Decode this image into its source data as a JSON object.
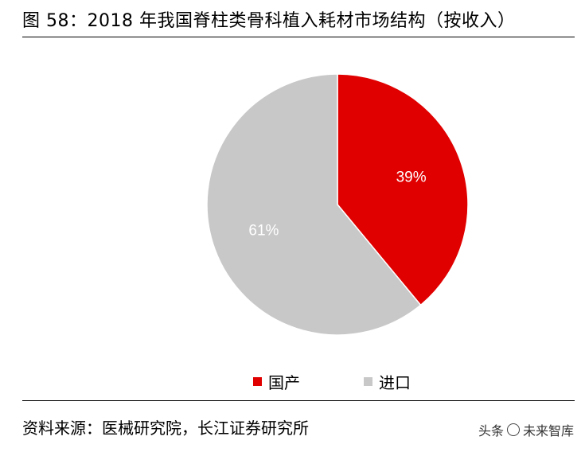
{
  "title": "图 58：2018 年我国脊柱类骨科植入耗材市场结构（按收入）",
  "source": "资料来源：医械研究院，长江证券研究所",
  "watermark": {
    "prefix": "头条",
    "name": "未来智库"
  },
  "chart_data": {
    "type": "pie",
    "title": "",
    "slices": [
      {
        "label": "国产",
        "value": 39,
        "display": "39%",
        "color": "#e00000",
        "text_color": "#ffffff"
      },
      {
        "label": "进口",
        "value": 61,
        "display": "61%",
        "color": "#c8c8c8",
        "text_color": "#ffffff"
      }
    ],
    "start": "12 o'clock",
    "direction": "clockwise",
    "legend_position": "bottom"
  }
}
